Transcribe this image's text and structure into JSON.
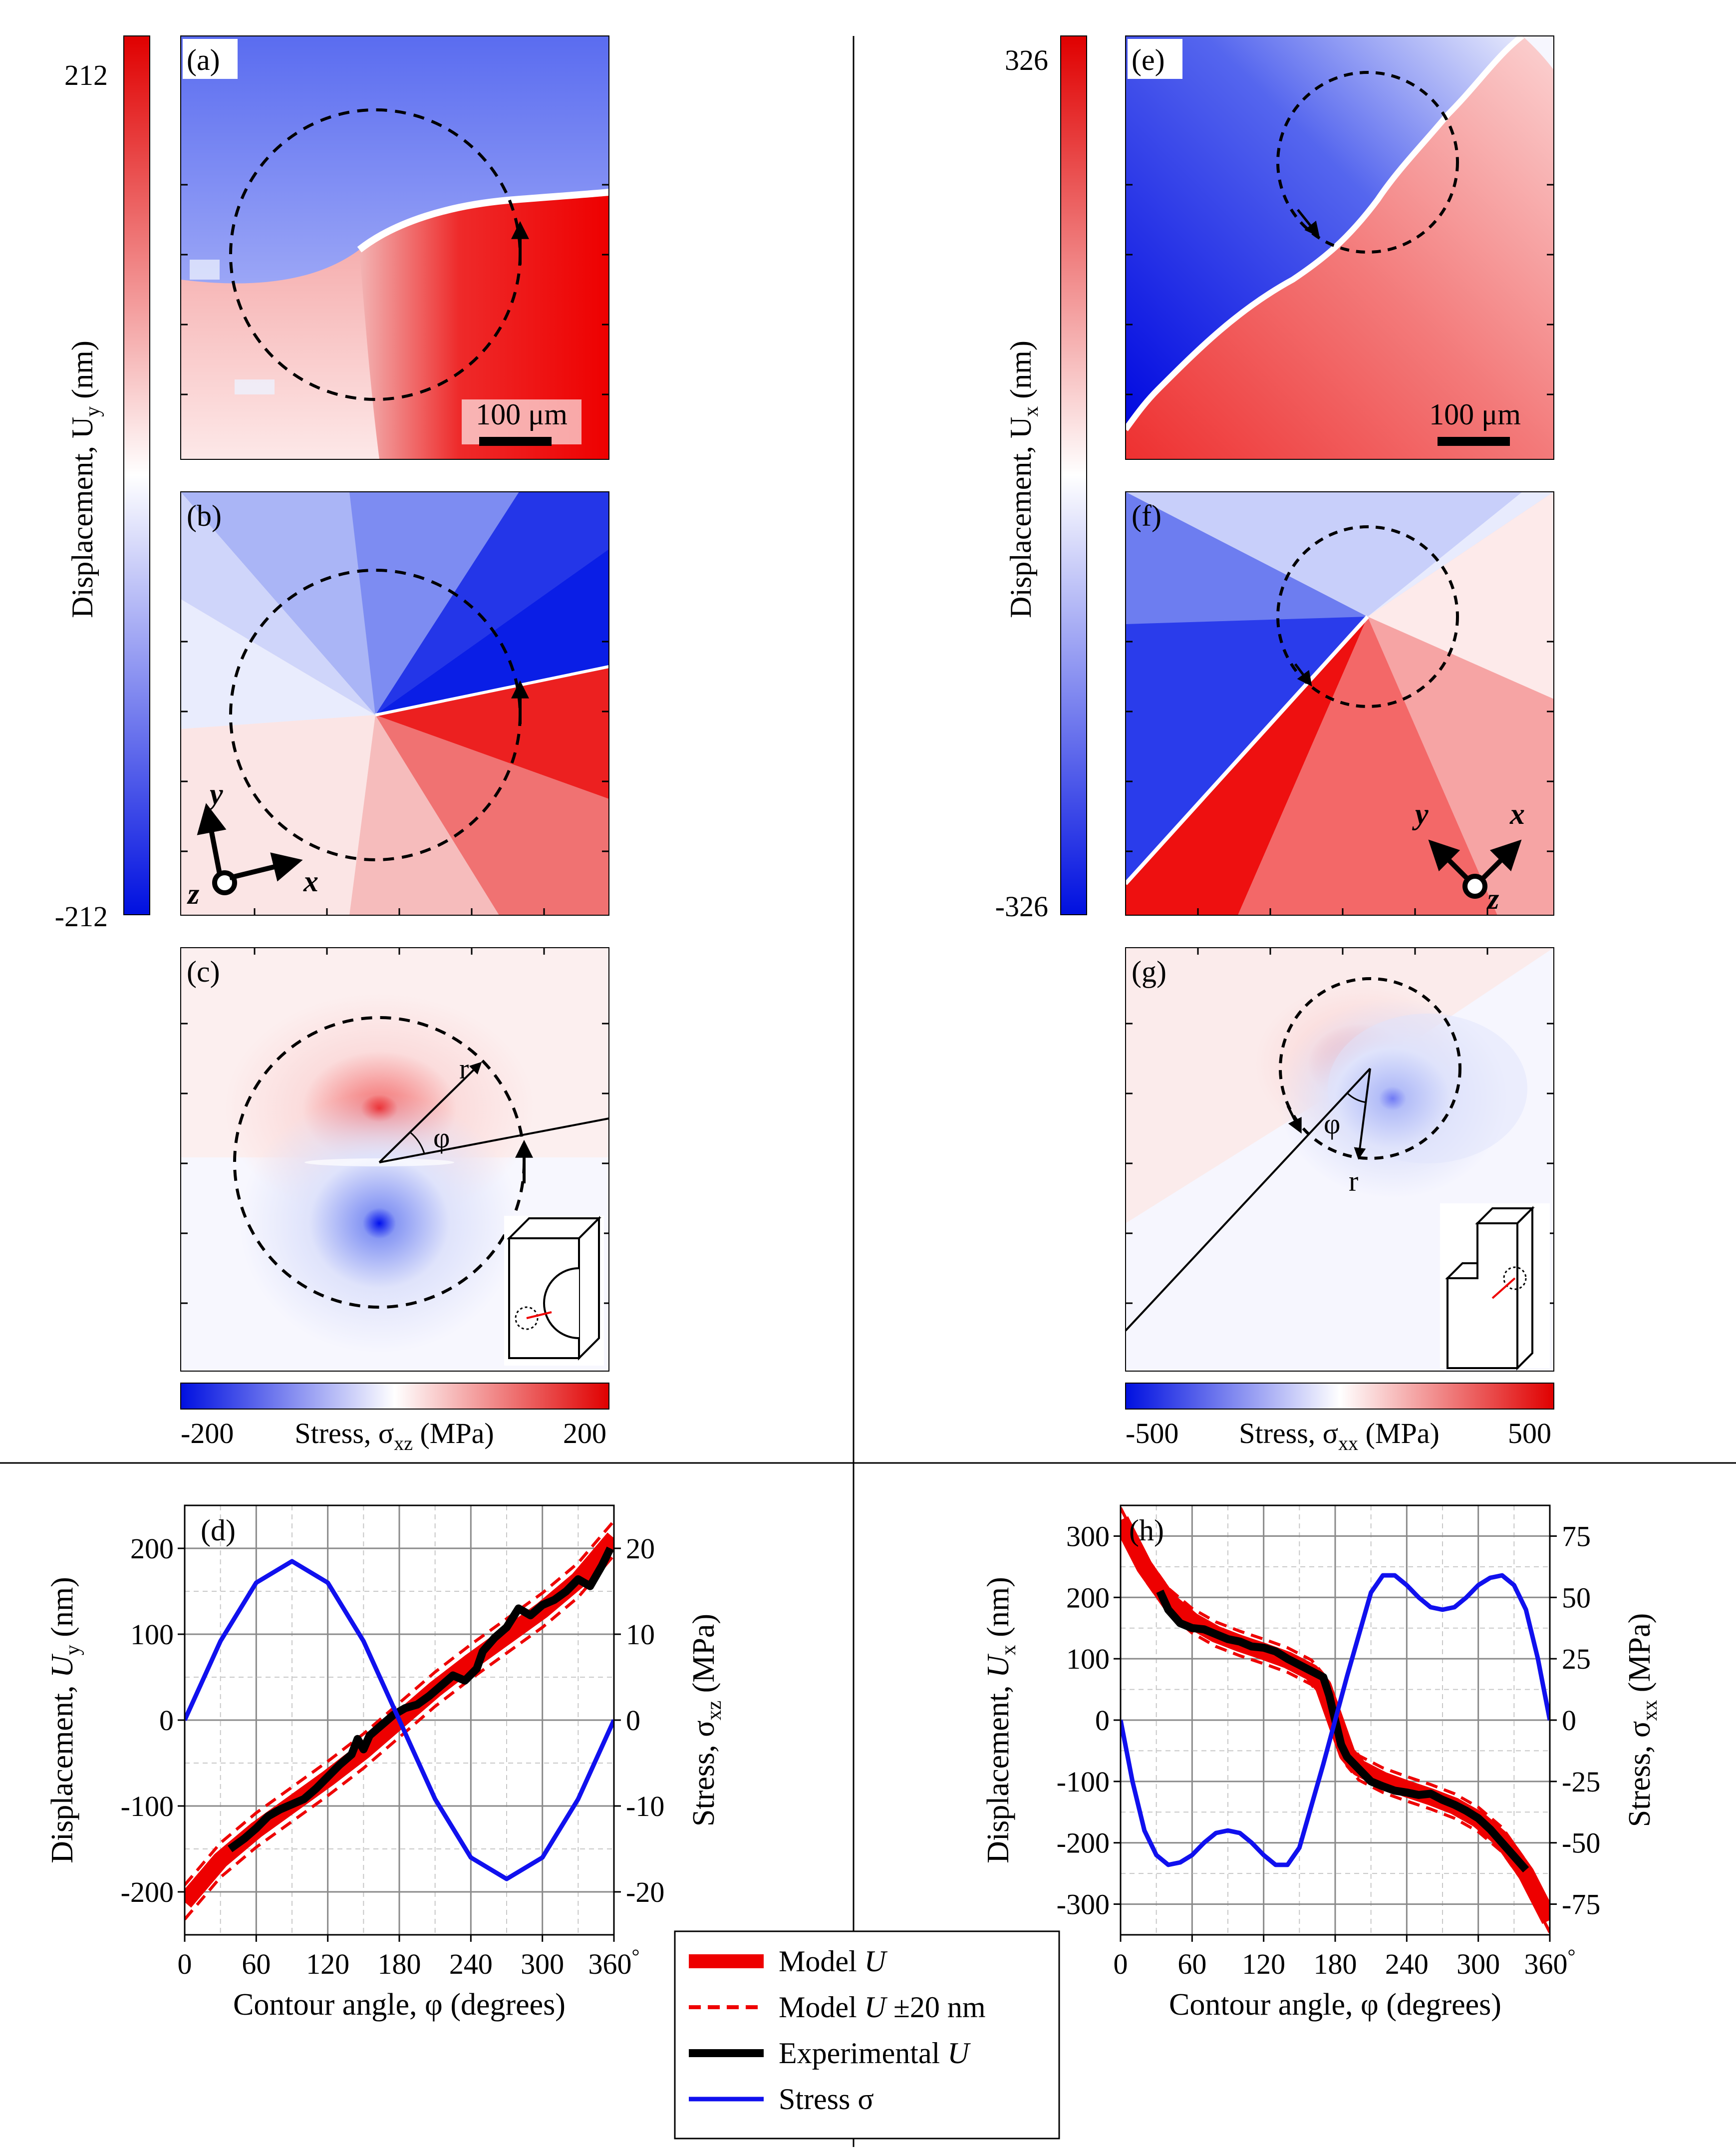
{
  "panels": {
    "a": "(a)",
    "b": "(b)",
    "c": "(c)",
    "d": "(d)",
    "e": "(e)",
    "f": "(f)",
    "g": "(g)",
    "h": "(h)"
  },
  "left_colorbar": {
    "max": "212",
    "min": "-212",
    "label": "Displacement, U",
    "label_sub": "y",
    "label_unit": " (nm)"
  },
  "right_colorbar": {
    "max": "326",
    "min": "-326",
    "label": "Displacement, U",
    "label_sub": "x",
    "label_unit": " (nm)"
  },
  "left_stress_bar": {
    "min": "-200",
    "max": "200",
    "label": "Stress, σ",
    "label_sub": "xz",
    "label_unit": " (MPa)"
  },
  "right_stress_bar": {
    "min": "-500",
    "max": "500",
    "label": "Stress, σ",
    "label_sub": "xx",
    "label_unit": " (MPa)"
  },
  "scale_bar": "100 μm",
  "axes_labels": {
    "x": "x",
    "y": "y",
    "z": "z"
  },
  "polar_labels": {
    "r": "r",
    "phi": "φ"
  },
  "colors": {
    "blue": "#0000ee",
    "red": "#ee0000",
    "white": "#ffffff"
  },
  "legend": [
    {
      "label": "Model ",
      "italic": "U",
      "tail": "",
      "style": "solid-red"
    },
    {
      "label": "Model ",
      "italic": "U",
      "tail": " ±20 nm",
      "style": "dashed-red"
    },
    {
      "label": "Experimental ",
      "italic": "U",
      "tail": "",
      "style": "solid-black"
    },
    {
      "label": "Stress σ",
      "italic": "",
      "tail": "",
      "style": "solid-blue"
    }
  ],
  "chart_data": [
    {
      "panel": "(d)",
      "type": "line",
      "xlabel": "Contour angle, φ (degrees)",
      "ylabel": "Displacement, U",
      "ylabel_sub": "y",
      "ylabel_unit": " (nm)",
      "y2label": "Stress, σ",
      "y2label_sub": "xz",
      "y2label_unit": " (MPa)",
      "xlim": [
        0,
        360
      ],
      "ylim": [
        -250,
        250
      ],
      "y2lim": [
        -25,
        25
      ],
      "xticks": [
        "0",
        "60",
        "120",
        "180",
        "240",
        "300",
        "360"
      ],
      "xticks_suffix": "°",
      "yticks": [
        "200",
        "100",
        "0",
        "-100",
        "-200"
      ],
      "y2ticks": [
        "20",
        "10",
        "0",
        "-10",
        "-20"
      ],
      "grid": true,
      "series": [
        {
          "name": "Model U",
          "axis": "left",
          "kind": "model",
          "x": [
            0,
            30,
            60,
            90,
            120,
            150,
            180,
            210,
            240,
            270,
            300,
            330,
            360
          ],
          "y": [
            -212,
            -163,
            -128,
            -98,
            -68,
            -36,
            0,
            36,
            68,
            98,
            128,
            163,
            212
          ]
        },
        {
          "name": "Experimental U",
          "axis": "left",
          "kind": "experimental",
          "x": [
            38,
            50,
            60,
            70,
            80,
            90,
            100,
            110,
            120,
            130,
            140,
            145,
            150,
            155,
            165,
            175,
            185,
            195,
            205,
            215,
            225,
            235,
            245,
            250,
            260,
            270,
            280,
            290,
            300,
            310,
            320,
            330,
            340,
            350,
            357
          ],
          "y": [
            -150,
            -138,
            -126,
            -112,
            -104,
            -98,
            -92,
            -80,
            -66,
            -52,
            -40,
            -22,
            -34,
            -18,
            -6,
            6,
            14,
            18,
            28,
            40,
            52,
            46,
            60,
            80,
            96,
            108,
            130,
            122,
            134,
            140,
            150,
            164,
            156,
            180,
            200
          ]
        },
        {
          "name": "Stress σ",
          "axis": "right",
          "kind": "stress",
          "x": [
            0,
            30,
            60,
            90,
            120,
            150,
            180,
            210,
            240,
            270,
            300,
            330,
            360
          ],
          "y": [
            0,
            9.2,
            16,
            18.5,
            16,
            9.2,
            0,
            -9.2,
            -16,
            -18.5,
            -16,
            -9.2,
            0
          ]
        }
      ]
    },
    {
      "panel": "(h)",
      "type": "line",
      "xlabel": "Contour angle, φ (degrees)",
      "ylabel": "Displacement, U",
      "ylabel_sub": "x",
      "ylabel_unit": " (nm)",
      "y2label": "Stress, σ",
      "y2label_sub": "xx",
      "y2label_unit": " (MPa)",
      "xlim": [
        0,
        360
      ],
      "ylim": [
        -350,
        350
      ],
      "y2lim": [
        -87.5,
        87.5
      ],
      "xticks": [
        "0",
        "60",
        "120",
        "180",
        "240",
        "300",
        "360"
      ],
      "xticks_suffix": "°",
      "yticks": [
        "300",
        "200",
        "100",
        "0",
        "-100",
        "-200",
        "-300"
      ],
      "y2ticks": [
        "75",
        "50",
        "25",
        "0",
        "-25",
        "-50",
        "-75"
      ],
      "grid": true,
      "series": [
        {
          "name": "Model U",
          "axis": "left",
          "kind": "model",
          "x": [
            0,
            20,
            40,
            60,
            80,
            100,
            120,
            140,
            160,
            170,
            180,
            190,
            200,
            220,
            240,
            260,
            280,
            300,
            320,
            340,
            360
          ],
          "y": [
            326,
            250,
            195,
            162,
            140,
            125,
            112,
            98,
            78,
            55,
            0,
            -55,
            -78,
            -98,
            -112,
            -125,
            -140,
            -162,
            -195,
            -250,
            -326
          ]
        },
        {
          "name": "Experimental U",
          "axis": "left",
          "kind": "experimental",
          "x": [
            33,
            40,
            50,
            60,
            70,
            80,
            90,
            100,
            110,
            120,
            130,
            140,
            150,
            160,
            170,
            175,
            180,
            185,
            190,
            200,
            210,
            220,
            230,
            240,
            250,
            260,
            270,
            280,
            290,
            300,
            310,
            320,
            330,
            340
          ],
          "y": [
            210,
            180,
            158,
            150,
            148,
            140,
            132,
            128,
            120,
            118,
            112,
            100,
            90,
            80,
            70,
            40,
            0,
            -40,
            -60,
            -80,
            -100,
            -108,
            -115,
            -118,
            -122,
            -120,
            -130,
            -138,
            -148,
            -160,
            -178,
            -200,
            -222,
            -244
          ]
        },
        {
          "name": "Stress σ",
          "axis": "right",
          "kind": "stress",
          "x": [
            0,
            10,
            20,
            30,
            40,
            50,
            60,
            70,
            80,
            90,
            100,
            110,
            120,
            130,
            140,
            150,
            160,
            170,
            180,
            190,
            200,
            210,
            220,
            230,
            240,
            250,
            260,
            270,
            280,
            290,
            300,
            310,
            320,
            330,
            340,
            350,
            360
          ],
          "y": [
            0,
            -25,
            -45,
            -55,
            -59,
            -58,
            -55,
            -50,
            -46,
            -45,
            -46,
            -50,
            -55,
            -59,
            -59,
            -52,
            -35,
            -18,
            0,
            18,
            35,
            52,
            59,
            59,
            55,
            50,
            46,
            45,
            46,
            50,
            55,
            58,
            59,
            55,
            45,
            25,
            0
          ]
        }
      ]
    }
  ]
}
